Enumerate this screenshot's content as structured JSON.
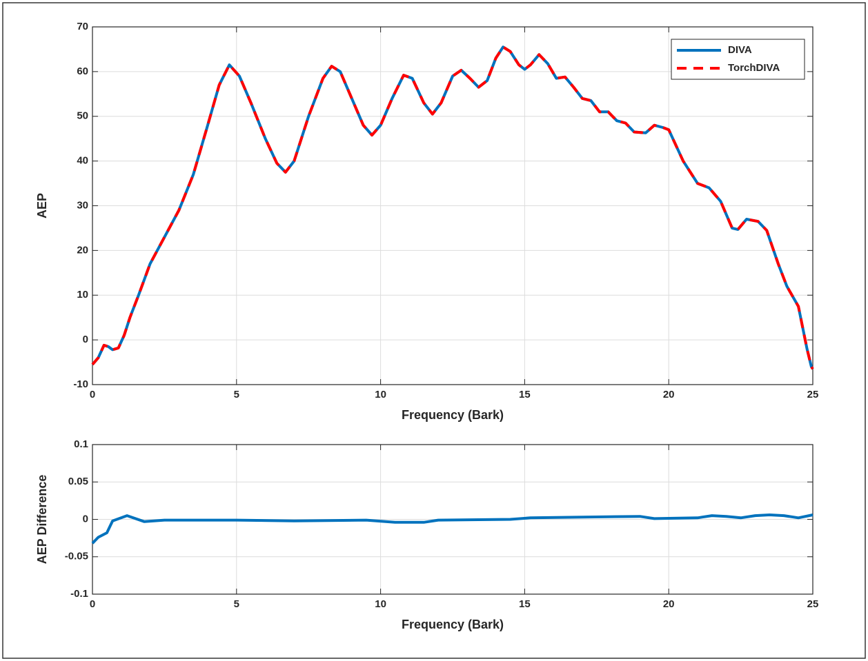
{
  "chart_data": [
    {
      "type": "line",
      "xlabel": "Frequency (Bark)",
      "ylabel": "AEP",
      "xlim": [
        0,
        25
      ],
      "xticks": [
        0,
        5,
        10,
        15,
        20,
        25
      ],
      "ylim": [
        -10,
        70
      ],
      "yticks": [
        -10,
        0,
        10,
        20,
        30,
        40,
        50,
        60,
        70
      ],
      "grid": true,
      "legend": "upper right",
      "x": [
        0,
        0.2,
        0.4,
        0.55,
        0.7,
        0.9,
        1.1,
        1.3,
        1.6,
        2,
        2.5,
        3,
        3.5,
        4,
        4.4,
        4.75,
        5.1,
        5.5,
        6,
        6.4,
        6.7,
        7,
        7.5,
        8,
        8.3,
        8.6,
        9,
        9.4,
        9.7,
        10,
        10.4,
        10.8,
        11.1,
        11.5,
        11.8,
        12.1,
        12.5,
        12.8,
        13.1,
        13.4,
        13.7,
        14,
        14.25,
        14.5,
        14.8,
        15,
        15.2,
        15.5,
        15.8,
        16.1,
        16.4,
        16.7,
        17,
        17.3,
        17.6,
        17.9,
        18.2,
        18.5,
        18.8,
        19.2,
        19.5,
        19.8,
        20,
        20.5,
        21,
        21.4,
        21.8,
        22.2,
        22.4,
        22.7,
        23.1,
        23.4,
        23.8,
        24.1,
        24.5,
        24.8,
        24.95,
        25
      ],
      "series": [
        {
          "name": "DIVA",
          "color": "#0072bd",
          "style": "solid",
          "values": [
            -5.5,
            -4,
            -1.2,
            -1.5,
            -2.2,
            -1.8,
            1,
            5,
            10,
            17,
            23,
            29,
            37,
            48,
            57,
            61.5,
            59,
            53,
            45,
            39.5,
            37.5,
            40,
            50,
            58.5,
            61.2,
            60,
            54,
            48,
            45.8,
            48,
            54,
            59.2,
            58.5,
            53,
            50.5,
            53,
            59,
            60.3,
            58.5,
            56.5,
            58,
            63,
            65.5,
            64.5,
            61.5,
            60.5,
            61.5,
            63.8,
            61.8,
            58.5,
            58.8,
            56.5,
            54,
            53.5,
            51,
            51,
            49,
            48.5,
            46.5,
            46.3,
            48,
            47.5,
            47,
            40,
            35,
            34,
            31,
            25,
            24.7,
            27,
            26.5,
            24.5,
            17,
            12,
            7.5,
            -2,
            -6,
            -6.5
          ]
        },
        {
          "name": "TorchDIVA",
          "color": "#ff0000",
          "style": "dashed",
          "values": [
            -5.5,
            -4,
            -1.2,
            -1.5,
            -2.2,
            -1.8,
            1,
            5,
            10,
            17,
            23,
            29,
            37,
            48,
            57,
            61.5,
            59,
            53,
            45,
            39.5,
            37.5,
            40,
            50,
            58.5,
            61.2,
            60,
            54,
            48,
            45.8,
            48,
            54,
            59.2,
            58.5,
            53,
            50.5,
            53,
            59,
            60.3,
            58.5,
            56.5,
            58,
            63,
            65.5,
            64.5,
            61.5,
            60.5,
            61.5,
            63.8,
            61.8,
            58.5,
            58.8,
            56.5,
            54,
            53.5,
            51,
            51,
            49,
            48.5,
            46.5,
            46.3,
            48,
            47.5,
            47,
            40,
            35,
            34,
            31,
            25,
            24.7,
            27,
            26.5,
            24.5,
            17,
            12,
            7.5,
            -2,
            -6,
            -6.5
          ]
        }
      ]
    },
    {
      "type": "line",
      "xlabel": "Frequency (Bark)",
      "ylabel": "AEP Difference",
      "xlim": [
        0,
        25
      ],
      "xticks": [
        0,
        5,
        10,
        15,
        20,
        25
      ],
      "ylim": [
        -0.1,
        0.1
      ],
      "yticks": [
        -0.1,
        -0.05,
        0,
        0.05,
        0.1
      ],
      "grid": true,
      "x": [
        0,
        0.2,
        0.5,
        0.7,
        1.2,
        1.8,
        2.5,
        5,
        7,
        9.5,
        10.5,
        11.5,
        12,
        14.5,
        15.2,
        17,
        19,
        19.5,
        21,
        21.5,
        22,
        22.5,
        23,
        23.5,
        24,
        24.5,
        25
      ],
      "series": [
        {
          "color": "#0072bd",
          "style": "solid",
          "values": [
            -0.032,
            -0.024,
            -0.018,
            -0.002,
            0.005,
            -0.003,
            -0.001,
            -0.001,
            -0.002,
            -0.001,
            -0.004,
            -0.004,
            -0.001,
            0,
            0.002,
            0.003,
            0.004,
            0.001,
            0.002,
            0.005,
            0.004,
            0.002,
            0.005,
            0.006,
            0.005,
            0.002,
            0.006
          ]
        }
      ]
    }
  ]
}
